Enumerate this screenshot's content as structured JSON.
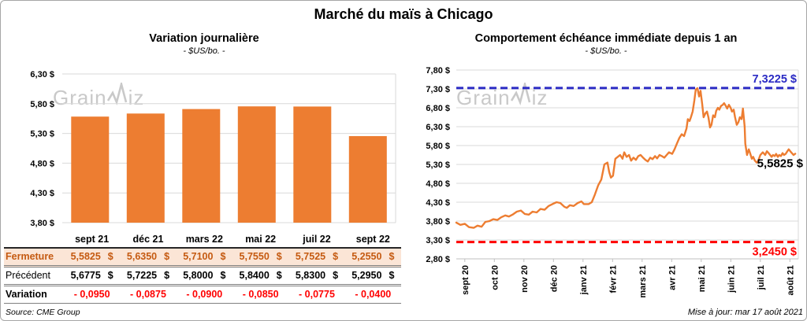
{
  "title": "Marché du maïs à Chicago",
  "watermark": "GrainWiz",
  "source": "Source: CME Group",
  "updated": "Mise à jour: mar 17 août 2021",
  "colors": {
    "bar_orange": "#ED7D31",
    "line_orange": "#ED7D31",
    "ref_high_blue": "#2B2BC4",
    "ref_low_red": "#FF0000",
    "fermeture_bg": "#FBE5D6",
    "fermeture_text": "#C55A11",
    "variation_red": "#FF0000",
    "grid": "#D9D9D9"
  },
  "chart_data": [
    {
      "type": "bar",
      "title": "Variation journalière",
      "subtitle": "- $US/bo. -",
      "categories": [
        "sept 21",
        "déc 21",
        "mars 22",
        "mai 22",
        "juil 22",
        "sept 22"
      ],
      "values": [
        5.5825,
        5.635,
        5.71,
        5.755,
        5.7525,
        5.255
      ],
      "ylim": [
        3.8,
        6.3
      ],
      "ytick_values": [
        6.3,
        5.8,
        5.3,
        4.8,
        4.3,
        3.8
      ],
      "ytick_labels": [
        "6,30 $",
        "5,80 $",
        "5,30 $",
        "4,80 $",
        "4,30 $",
        "3,80 $"
      ],
      "bar_color": "#ED7D31",
      "grid": true
    },
    {
      "type": "line",
      "title": "Comportement échéance immédiate depuis 1 an",
      "subtitle": "- $US/bo. -",
      "x_tick_labels": [
        "sept 20",
        "oct 20",
        "nov 20",
        "déc 20",
        "janv 21",
        "févr 21",
        "mars 21",
        "avr 21",
        "mai 21",
        "juin 21",
        "juil 21",
        "août 21"
      ],
      "ylim": [
        2.8,
        7.8
      ],
      "ytick_values": [
        7.8,
        7.3,
        6.8,
        6.3,
        5.8,
        5.3,
        4.8,
        4.3,
        3.8,
        3.3,
        2.8
      ],
      "ytick_labels": [
        "7,80 $",
        "7,30 $",
        "6,80 $",
        "6,30 $",
        "5,80 $",
        "5,30 $",
        "4,80 $",
        "4,30 $",
        "3,80 $",
        "3,30 $",
        "2,80 $"
      ],
      "line_color": "#ED7D31",
      "grid": true,
      "ref_lines": [
        {
          "value": 7.3225,
          "label": "7,3225 $",
          "color": "#2B2BC4",
          "label_position": "above"
        },
        {
          "value": 3.245,
          "label": "3,2450 $",
          "color": "#FF0000",
          "label_position": "below"
        }
      ],
      "end_label": "5,5825 $",
      "last_value": 5.5825,
      "points": [
        [
          0.0,
          3.76
        ],
        [
          0.012,
          3.7
        ],
        [
          0.025,
          3.73
        ],
        [
          0.037,
          3.64
        ],
        [
          0.051,
          3.62
        ],
        [
          0.062,
          3.68
        ],
        [
          0.074,
          3.65
        ],
        [
          0.085,
          3.78
        ],
        [
          0.097,
          3.8
        ],
        [
          0.108,
          3.85
        ],
        [
          0.12,
          3.83
        ],
        [
          0.131,
          3.9
        ],
        [
          0.143,
          3.95
        ],
        [
          0.154,
          3.92
        ],
        [
          0.166,
          3.98
        ],
        [
          0.177,
          4.05
        ],
        [
          0.189,
          4.08
        ],
        [
          0.2,
          3.99
        ],
        [
          0.212,
          3.97
        ],
        [
          0.223,
          4.05
        ],
        [
          0.235,
          4.03
        ],
        [
          0.246,
          4.12
        ],
        [
          0.258,
          4.1
        ],
        [
          0.27,
          4.2
        ],
        [
          0.281,
          4.25
        ],
        [
          0.293,
          4.3
        ],
        [
          0.304,
          4.28
        ],
        [
          0.316,
          4.18
        ],
        [
          0.323,
          4.15
        ],
        [
          0.332,
          4.22
        ],
        [
          0.343,
          4.2
        ],
        [
          0.355,
          4.28
        ],
        [
          0.366,
          4.32
        ],
        [
          0.373,
          4.25
        ],
        [
          0.387,
          4.25
        ],
        [
          0.396,
          4.3
        ],
        [
          0.405,
          4.5
        ],
        [
          0.415,
          4.75
        ],
        [
          0.424,
          4.9
        ],
        [
          0.433,
          5.3
        ],
        [
          0.442,
          5.35
        ],
        [
          0.447,
          5.1
        ],
        [
          0.452,
          4.95
        ],
        [
          0.458,
          5.0
        ],
        [
          0.465,
          5.45
        ],
        [
          0.472,
          5.5
        ],
        [
          0.479,
          5.55
        ],
        [
          0.486,
          5.45
        ],
        [
          0.491,
          5.62
        ],
        [
          0.498,
          5.5
        ],
        [
          0.505,
          5.55
        ],
        [
          0.511,
          5.4
        ],
        [
          0.518,
          5.48
        ],
        [
          0.525,
          5.42
        ],
        [
          0.532,
          5.52
        ],
        [
          0.539,
          5.55
        ],
        [
          0.546,
          5.48
        ],
        [
          0.553,
          5.42
        ],
        [
          0.56,
          5.38
        ],
        [
          0.567,
          5.48
        ],
        [
          0.574,
          5.44
        ],
        [
          0.581,
          5.52
        ],
        [
          0.587,
          5.46
        ],
        [
          0.594,
          5.55
        ],
        [
          0.601,
          5.52
        ],
        [
          0.608,
          5.48
        ],
        [
          0.615,
          5.55
        ],
        [
          0.622,
          5.62
        ],
        [
          0.631,
          5.58
        ],
        [
          0.638,
          5.7
        ],
        [
          0.645,
          5.85
        ],
        [
          0.652,
          6.0
        ],
        [
          0.659,
          6.1
        ],
        [
          0.666,
          6.05
        ],
        [
          0.673,
          6.25
        ],
        [
          0.677,
          6.5
        ],
        [
          0.682,
          6.45
        ],
        [
          0.686,
          6.55
        ],
        [
          0.691,
          6.7
        ],
        [
          0.696,
          7.0
        ],
        [
          0.7,
          7.28
        ],
        [
          0.705,
          7.32
        ],
        [
          0.71,
          7.1
        ],
        [
          0.714,
          7.25
        ],
        [
          0.719,
          6.9
        ],
        [
          0.723,
          6.55
        ],
        [
          0.728,
          6.65
        ],
        [
          0.733,
          6.7
        ],
        [
          0.737,
          6.55
        ],
        [
          0.742,
          6.28
        ],
        [
          0.746,
          6.35
        ],
        [
          0.751,
          6.6
        ],
        [
          0.756,
          6.55
        ],
        [
          0.76,
          6.72
        ],
        [
          0.765,
          6.8
        ],
        [
          0.769,
          6.75
        ],
        [
          0.774,
          6.85
        ],
        [
          0.779,
          6.88
        ],
        [
          0.783,
          6.92
        ],
        [
          0.788,
          6.85
        ],
        [
          0.792,
          6.78
        ],
        [
          0.797,
          6.88
        ],
        [
          0.802,
          6.8
        ],
        [
          0.806,
          6.7
        ],
        [
          0.811,
          6.75
        ],
        [
          0.815,
          6.55
        ],
        [
          0.82,
          6.35
        ],
        [
          0.825,
          6.42
        ],
        [
          0.829,
          6.55
        ],
        [
          0.834,
          6.5
        ],
        [
          0.838,
          6.78
        ],
        [
          0.843,
          6.3
        ],
        [
          0.845,
          5.85
        ],
        [
          0.85,
          5.55
        ],
        [
          0.855,
          5.7
        ],
        [
          0.859,
          5.6
        ],
        [
          0.864,
          5.45
        ],
        [
          0.868,
          5.5
        ],
        [
          0.873,
          5.4
        ],
        [
          0.878,
          5.35
        ],
        [
          0.882,
          5.38
        ],
        [
          0.889,
          5.55
        ],
        [
          0.896,
          5.62
        ],
        [
          0.903,
          5.55
        ],
        [
          0.908,
          5.65
        ],
        [
          0.915,
          5.58
        ],
        [
          0.922,
          5.5
        ],
        [
          0.926,
          5.55
        ],
        [
          0.931,
          5.52
        ],
        [
          0.935,
          5.58
        ],
        [
          0.94,
          5.5
        ],
        [
          0.944,
          5.55
        ],
        [
          0.949,
          5.52
        ],
        [
          0.954,
          5.6
        ],
        [
          0.958,
          5.55
        ],
        [
          0.963,
          5.58
        ],
        [
          0.968,
          5.65
        ],
        [
          0.972,
          5.7
        ],
        [
          0.979,
          5.62
        ],
        [
          0.986,
          5.55
        ],
        [
          0.991,
          5.5825
        ]
      ]
    }
  ],
  "table": {
    "column_headers": [
      "sept 21",
      "déc 21",
      "mars 22",
      "mai 22",
      "juil 22",
      "sept 22"
    ],
    "rows": [
      {
        "kind": "fermeture",
        "label": "Fermeture",
        "unit": "$",
        "values": [
          "5,5825",
          "5,6350",
          "5,7100",
          "5,7550",
          "5,7525",
          "5,2550"
        ]
      },
      {
        "kind": "precedent",
        "label": "Précédent",
        "unit": "$",
        "values": [
          "5,6775",
          "5,7225",
          "5,8000",
          "5,8400",
          "5,8300",
          "5,2950"
        ]
      },
      {
        "kind": "variation",
        "label": "Variation",
        "unit": "",
        "values": [
          "- 0,0950",
          "- 0,0875",
          "- 0,0900",
          "- 0,0850",
          "- 0,0775",
          "- 0,0400"
        ]
      }
    ]
  }
}
